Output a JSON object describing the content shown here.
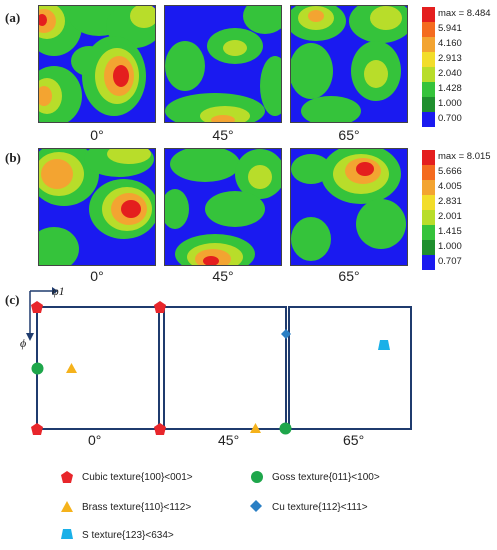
{
  "panels": {
    "a": {
      "label": "(a)",
      "angles": [
        "0°",
        "45°",
        "65°"
      ],
      "scale": [
        "max = 8.484",
        "5.941",
        "4.160",
        "2.913",
        "2.040",
        "1.428",
        "1.000",
        "0.700"
      ]
    },
    "b": {
      "label": "(b)",
      "angles": [
        "0°",
        "45°",
        "65°"
      ],
      "scale": [
        "max = 8.015",
        "5.666",
        "4.005",
        "2.831",
        "2.001",
        "1.415",
        "1.000",
        "0.707"
      ]
    },
    "c": {
      "label": "(c)",
      "angles": [
        "0°",
        "45°",
        "65°"
      ],
      "axis_phi1": "φ1",
      "axis_phi": "ϕ"
    }
  },
  "scale_colors": [
    "#e41e1e",
    "#f46b1f",
    "#f3a431",
    "#f2dd2a",
    "#b8dd2a",
    "#35c33b",
    "#1f8f2e",
    "#1a1af0"
  ],
  "legend": [
    {
      "icon": "pentagon",
      "color": "#e8262b",
      "text": "Cubic texture{100}<001>"
    },
    {
      "icon": "circle",
      "color": "#1ea64b",
      "text": "Goss texture{011}<100>"
    },
    {
      "icon": "triangle",
      "color": "#f5b21b",
      "text": "Brass texture{110}<112>"
    },
    {
      "icon": "diamond",
      "color": "#2a7fc4",
      "text": "Cu texture{112}<111>"
    },
    {
      "icon": "trapezoid",
      "color": "#1ab0e8",
      "text": "S texture{123}<634>"
    }
  ]
}
